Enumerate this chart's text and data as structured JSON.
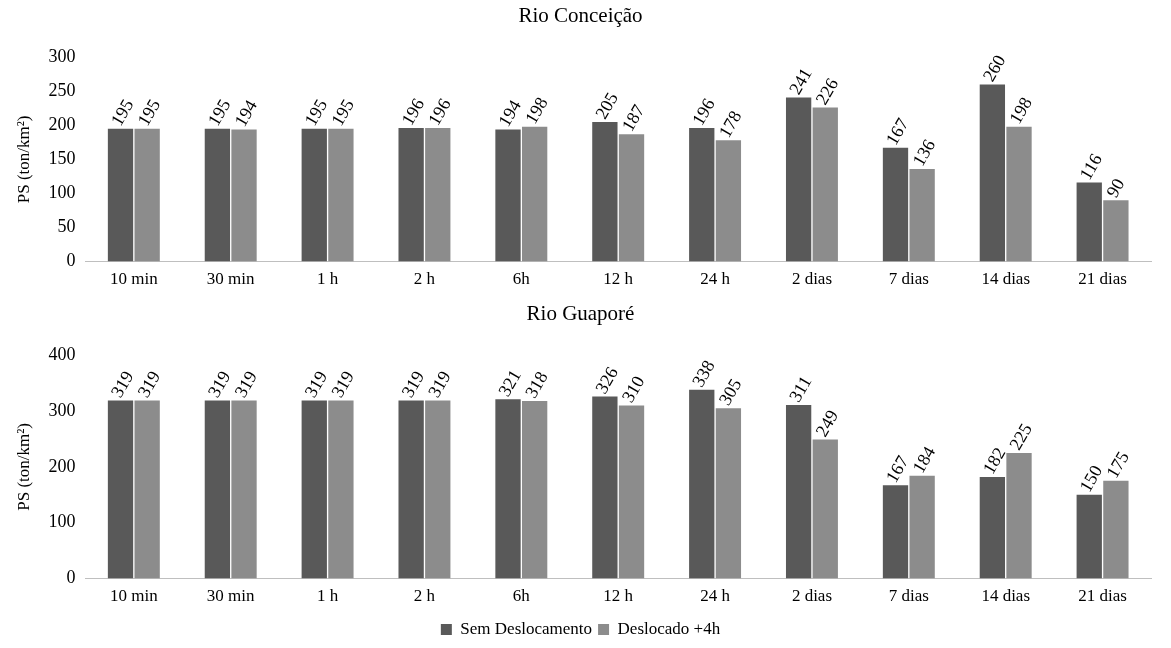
{
  "chart_data": [
    {
      "type": "bar",
      "title": "Rio Conceição",
      "ylabel": "PS (ton/km²)",
      "categories": [
        "10 min",
        "30 min",
        "1 h",
        "2 h",
        "6h",
        "12 h",
        "24 h",
        "2 dias",
        "7 dias",
        "14 dias",
        "21 dias"
      ],
      "series": [
        {
          "color": "#595959",
          "values": [
            195,
            195,
            195,
            196,
            194,
            205,
            196,
            241,
            167,
            260,
            116
          ]
        },
        {
          "color": "#8c8c8c",
          "values": [
            195,
            194,
            195,
            196,
            198,
            187,
            178,
            226,
            136,
            198,
            90
          ]
        }
      ],
      "ylim": [
        0,
        300
      ],
      "yticks": [
        0,
        50,
        100,
        150,
        200,
        250,
        300
      ],
      "grid": false,
      "data_labels": true,
      "legend": false
    },
    {
      "type": "bar",
      "title": "Rio Guaporé",
      "ylabel": "PS (ton/km²)",
      "categories": [
        "10 min",
        "30 min",
        "1 h",
        "2 h",
        "6h",
        "12 h",
        "24 h",
        "2 dias",
        "7 dias",
        "14 dias",
        "21 dias"
      ],
      "series": [
        {
          "name": "Sem Deslocamento",
          "color": "#595959",
          "values": [
            319,
            319,
            319,
            319,
            321,
            326,
            338,
            311,
            167,
            182,
            150
          ]
        },
        {
          "name": "Deslocado +4h",
          "color": "#8c8c8c",
          "values": [
            319,
            319,
            319,
            319,
            318,
            310,
            305,
            249,
            184,
            225,
            175
          ]
        }
      ],
      "ylim": [
        0,
        400
      ],
      "yticks": [
        0,
        100,
        200,
        300,
        400
      ],
      "grid": false,
      "data_labels": true,
      "legend": "bottom"
    }
  ]
}
